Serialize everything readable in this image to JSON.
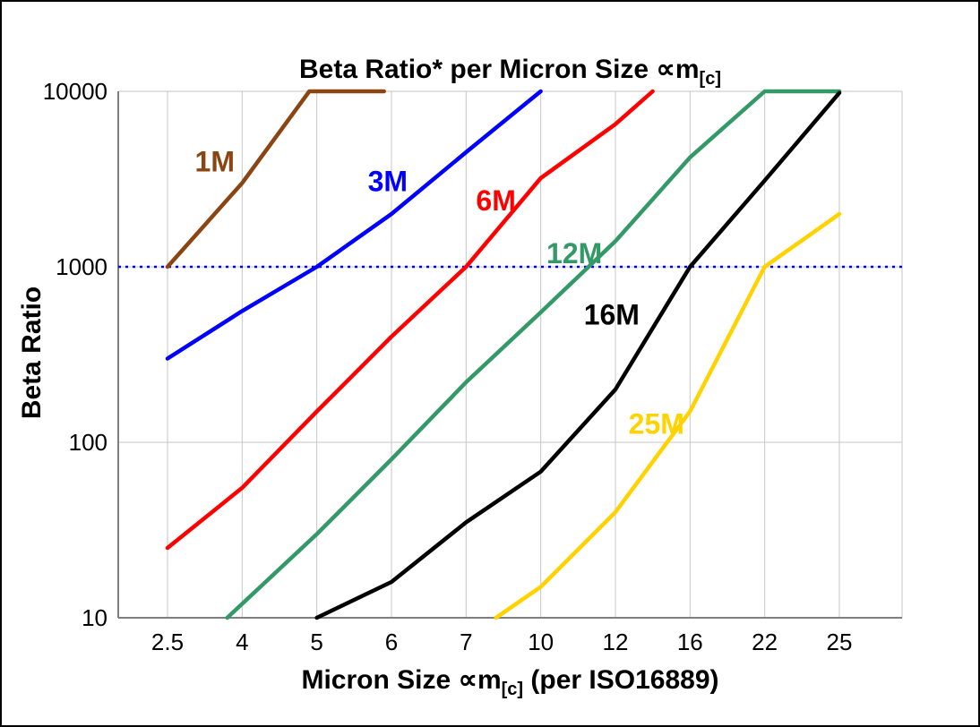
{
  "chart_data": {
    "type": "line",
    "title": {
      "text": "Beta Ratio* per Micron Size ∝m",
      "sub": "[c]"
    },
    "xlabel": {
      "pre": "Micron Size ∝m",
      "sub": "[c]",
      "post": " (per ISO16889)"
    },
    "ylabel": "Beta Ratio",
    "x_categories": [
      2.5,
      4,
      5,
      6,
      7,
      10,
      12,
      16,
      22,
      25
    ],
    "x_tick_labels": [
      "2.5",
      "4",
      "5",
      "6",
      "7",
      "10",
      "12",
      "16",
      "22",
      "25"
    ],
    "y_ticks": [
      10,
      100,
      1000,
      10000
    ],
    "y_tick_labels": [
      "10",
      "100",
      "1000",
      "10000"
    ],
    "y_scale": "log",
    "ylim": [
      10,
      10000
    ],
    "grid": true,
    "grid_color": "#c6c6c6",
    "axis_color": "#7f7f7f",
    "reference_line": {
      "y": 1000,
      "color": "#0000ff",
      "style": "dotted"
    },
    "series": [
      {
        "name": "1M",
        "color": "#8B4513",
        "points": [
          [
            2.5,
            1000
          ],
          [
            4,
            3000
          ],
          [
            4.9,
            10000
          ],
          [
            5.9,
            10000
          ]
        ]
      },
      {
        "name": "3M",
        "color": "#0000ff",
        "points": [
          [
            2.5,
            300
          ],
          [
            4,
            560
          ],
          [
            5,
            1000
          ],
          [
            6,
            2000
          ],
          [
            7,
            4500
          ],
          [
            10,
            10000
          ]
        ]
      },
      {
        "name": "6M",
        "color": "#ff0000",
        "points": [
          [
            2.5,
            25
          ],
          [
            4,
            55
          ],
          [
            5,
            150
          ],
          [
            6,
            400
          ],
          [
            7,
            1000
          ],
          [
            10,
            3200
          ],
          [
            12,
            6500
          ],
          [
            14,
            10000
          ]
        ]
      },
      {
        "name": "12M",
        "color": "#339966",
        "points": [
          [
            3.7,
            10
          ],
          [
            5,
            30
          ],
          [
            6,
            80
          ],
          [
            7,
            220
          ],
          [
            10,
            550
          ],
          [
            12,
            1400
          ],
          [
            16,
            4200
          ],
          [
            22,
            10000
          ],
          [
            25,
            10000
          ]
        ]
      },
      {
        "name": "16M",
        "color": "#000000",
        "points": [
          [
            5,
            10
          ],
          [
            6,
            16
          ],
          [
            7,
            35
          ],
          [
            10,
            68
          ],
          [
            12,
            200
          ],
          [
            16,
            1000
          ],
          [
            22,
            3100
          ],
          [
            25,
            9800
          ]
        ]
      },
      {
        "name": "25M",
        "color": "#ffd200",
        "points": [
          [
            8.2,
            10
          ],
          [
            10,
            15
          ],
          [
            12,
            40
          ],
          [
            16,
            150
          ],
          [
            22,
            1000
          ],
          [
            25,
            2000
          ]
        ]
      }
    ],
    "annotations": [
      {
        "text": "1M",
        "x": 3.45,
        "y": 3500,
        "color": "#8B4513"
      },
      {
        "text": "3M",
        "x": 5.95,
        "y": 2700,
        "color": "#0000ff"
      },
      {
        "text": "6M",
        "x": 8.2,
        "y": 2100,
        "color": "#ff0000"
      },
      {
        "text": "12M",
        "x": 10.9,
        "y": 1050,
        "color": "#339966"
      },
      {
        "text": "16M",
        "x": 11.9,
        "y": 470,
        "color": "#000000"
      },
      {
        "text": "25M",
        "x": 14.2,
        "y": 112,
        "color": "#ffd200"
      }
    ]
  }
}
